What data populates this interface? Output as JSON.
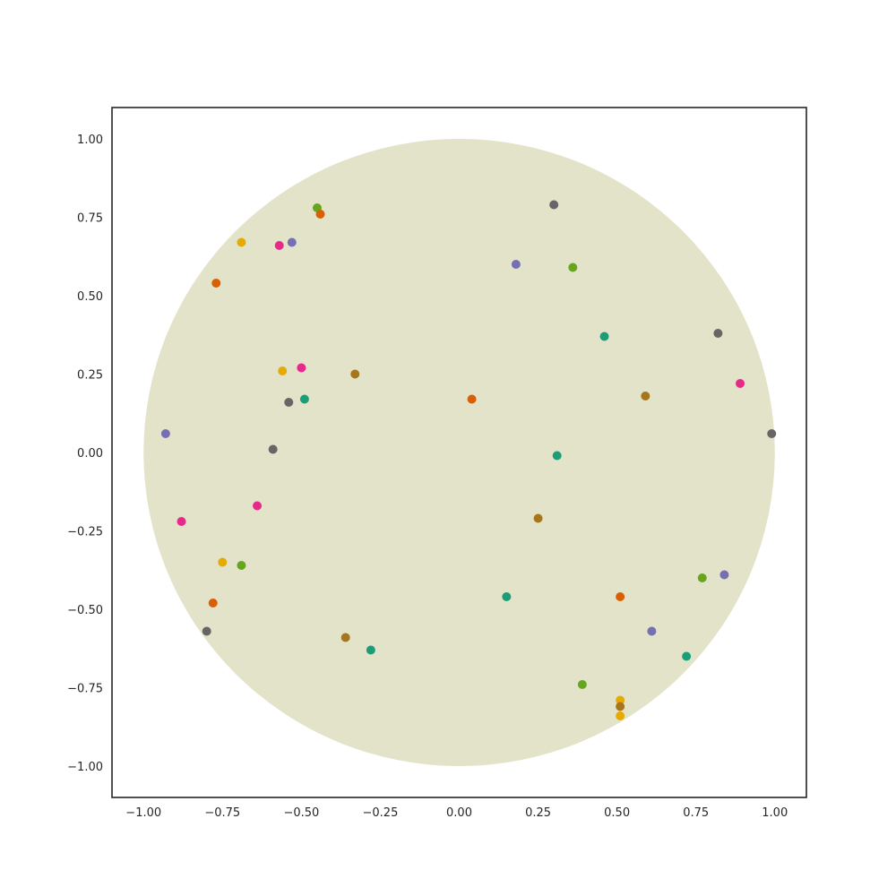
{
  "chart_data": {
    "type": "scatter",
    "title": "",
    "xlabel": "",
    "ylabel": "",
    "xlim": [
      -1.1,
      1.1
    ],
    "ylim": [
      -1.1,
      1.1
    ],
    "grid": false,
    "legend": "none",
    "background_shape": {
      "type": "circle",
      "center": [
        0,
        0
      ],
      "radius": 1.0,
      "color": "#e3e3c9"
    },
    "x_ticks": [
      -1.0,
      -0.75,
      -0.5,
      -0.25,
      0.0,
      0.25,
      0.5,
      0.75,
      1.0
    ],
    "x_tick_labels": [
      "−1.00",
      "−0.75",
      "−0.50",
      "−0.25",
      "0.00",
      "0.25",
      "0.50",
      "0.75",
      "1.00"
    ],
    "y_ticks": [
      1.0,
      0.75,
      0.5,
      0.25,
      0.0,
      -0.25,
      -0.5,
      -0.75,
      -1.0
    ],
    "y_tick_labels": [
      "1.00",
      "0.75",
      "0.50",
      "0.25",
      "0.00",
      "−0.25",
      "−0.50",
      "−0.75",
      "−1.00"
    ],
    "points": [
      {
        "x": -0.45,
        "y": 0.78,
        "color": "#66a61e"
      },
      {
        "x": -0.44,
        "y": 0.76,
        "color": "#d95f02"
      },
      {
        "x": -0.69,
        "y": 0.67,
        "color": "#e6ab02"
      },
      {
        "x": -0.57,
        "y": 0.66,
        "color": "#e7298a"
      },
      {
        "x": -0.53,
        "y": 0.67,
        "color": "#7570b3"
      },
      {
        "x": -0.77,
        "y": 0.54,
        "color": "#d95f02"
      },
      {
        "x": 0.3,
        "y": 0.79,
        "color": "#666666"
      },
      {
        "x": 0.18,
        "y": 0.6,
        "color": "#7570b3"
      },
      {
        "x": 0.36,
        "y": 0.59,
        "color": "#66a61e"
      },
      {
        "x": 0.46,
        "y": 0.37,
        "color": "#1b9e77"
      },
      {
        "x": 0.82,
        "y": 0.38,
        "color": "#666666"
      },
      {
        "x": 0.89,
        "y": 0.22,
        "color": "#e7298a"
      },
      {
        "x": 0.59,
        "y": 0.18,
        "color": "#a6761d"
      },
      {
        "x": 0.04,
        "y": 0.17,
        "color": "#d95f02"
      },
      {
        "x": -0.56,
        "y": 0.26,
        "color": "#e6ab02"
      },
      {
        "x": -0.5,
        "y": 0.27,
        "color": "#e7298a"
      },
      {
        "x": -0.33,
        "y": 0.25,
        "color": "#a6761d"
      },
      {
        "x": -0.54,
        "y": 0.16,
        "color": "#666666"
      },
      {
        "x": -0.49,
        "y": 0.17,
        "color": "#1b9e77"
      },
      {
        "x": -0.93,
        "y": 0.06,
        "color": "#7570b3"
      },
      {
        "x": -0.59,
        "y": 0.01,
        "color": "#666666"
      },
      {
        "x": 0.99,
        "y": 0.06,
        "color": "#666666"
      },
      {
        "x": 0.31,
        "y": -0.01,
        "color": "#1b9e77"
      },
      {
        "x": -0.88,
        "y": -0.22,
        "color": "#e7298a"
      },
      {
        "x": -0.64,
        "y": -0.17,
        "color": "#e7298a"
      },
      {
        "x": 0.25,
        "y": -0.21,
        "color": "#a6761d"
      },
      {
        "x": -0.75,
        "y": -0.35,
        "color": "#e6ab02"
      },
      {
        "x": -0.69,
        "y": -0.36,
        "color": "#66a61e"
      },
      {
        "x": -0.78,
        "y": -0.48,
        "color": "#d95f02"
      },
      {
        "x": -0.8,
        "y": -0.57,
        "color": "#666666"
      },
      {
        "x": 0.15,
        "y": -0.46,
        "color": "#1b9e77"
      },
      {
        "x": 0.51,
        "y": -0.46,
        "color": "#d95f02"
      },
      {
        "x": 0.77,
        "y": -0.4,
        "color": "#66a61e"
      },
      {
        "x": 0.84,
        "y": -0.39,
        "color": "#7570b3"
      },
      {
        "x": 0.61,
        "y": -0.57,
        "color": "#7570b3"
      },
      {
        "x": -0.36,
        "y": -0.59,
        "color": "#a6761d"
      },
      {
        "x": -0.28,
        "y": -0.63,
        "color": "#1b9e77"
      },
      {
        "x": 0.72,
        "y": -0.65,
        "color": "#1b9e77"
      },
      {
        "x": 0.39,
        "y": -0.74,
        "color": "#66a61e"
      },
      {
        "x": 0.51,
        "y": -0.79,
        "color": "#e6ab02"
      },
      {
        "x": 0.51,
        "y": -0.81,
        "color": "#a6761d"
      },
      {
        "x": 0.51,
        "y": -0.84,
        "color": "#e6ab02"
      }
    ]
  }
}
